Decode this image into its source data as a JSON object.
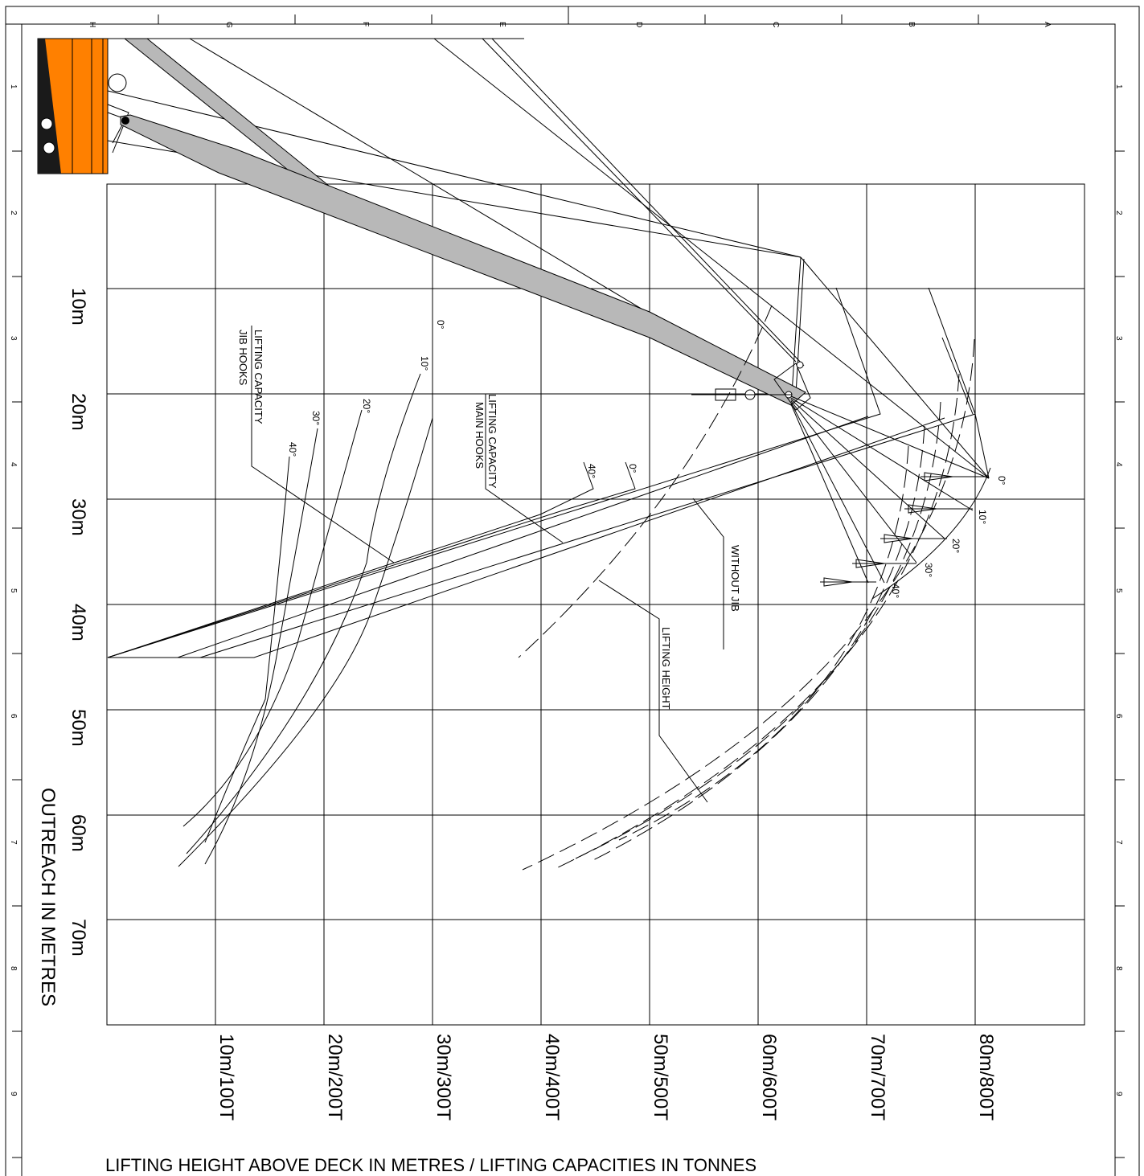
{
  "zones_top": [
    "H",
    "G",
    "F",
    "E",
    "D",
    "C",
    "B",
    "A"
  ],
  "zones_side": [
    "1",
    "2",
    "3",
    "4",
    "5",
    "6",
    "7",
    "8",
    "9"
  ],
  "outreach_ticks": [
    "10m",
    "20m",
    "30m",
    "40m",
    "50m",
    "60m",
    "70m"
  ],
  "height_capacity_ticks": [
    "10m/100T",
    "20m/200T",
    "30m/300T",
    "40m/400T",
    "50m/500T",
    "60m/600T",
    "70m/700T",
    "80m/800T"
  ],
  "outreach_axis_title": "OUTREACH IN METRES",
  "bottom_axis_title": "LIFTING HEIGHT ABOVE DECK IN METRES / LIFTING CAPACITIES IN TONNES",
  "labels": {
    "jib_hooks_line1": "LIFTING CAPACITY",
    "jib_hooks_line2": "JIB HOOKS",
    "main_hooks_line1": "LIFTING CAPACITY",
    "main_hooks_line2": "MAIN HOOKS",
    "without_jib": "WITHOUT JIB",
    "lifting_height": "LIFTING HEIGHT"
  },
  "jib_angles": [
    "0°",
    "10°",
    "20°",
    "30°",
    "40°"
  ],
  "main_hook_angles": [
    "0°",
    "40°"
  ],
  "tip_angles": [
    "0°",
    "10°",
    "20°",
    "30°",
    "40°"
  ],
  "colors": {
    "crane_house": "#ff8000",
    "boom": "#b8b8b8",
    "line": "#000000"
  }
}
